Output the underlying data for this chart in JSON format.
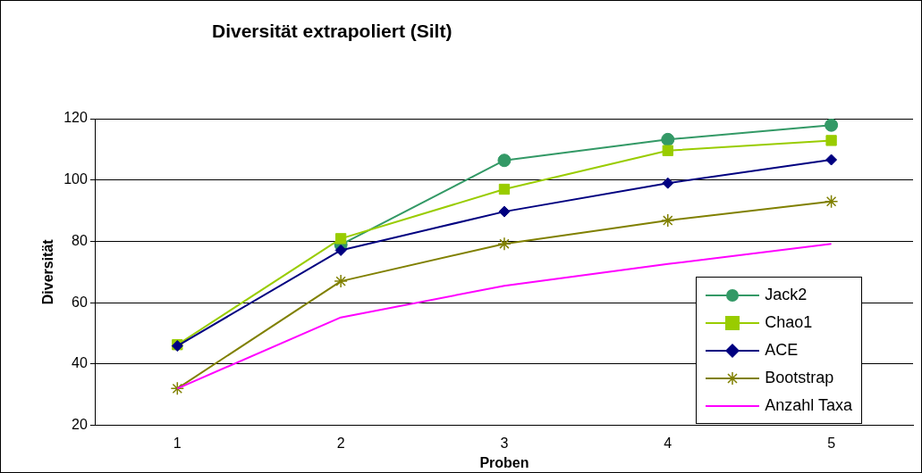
{
  "chart_data": {
    "type": "line",
    "title": "Diversität extrapoliert (Silt)",
    "xlabel": "Proben",
    "ylabel": "Diversität",
    "categories": [
      "1",
      "2",
      "3",
      "4",
      "5"
    ],
    "series": [
      {
        "name": "Jack2",
        "color": "#339966",
        "marker": "circle",
        "values": [
          null,
          78.9,
          106.4,
          113.2,
          117.9
        ]
      },
      {
        "name": "Chao1",
        "color": "#99cc00",
        "marker": "square",
        "values": [
          46.3,
          80.9,
          97.0,
          109.6,
          112.9
        ]
      },
      {
        "name": "ACE",
        "color": "#000080",
        "marker": "diamond",
        "values": [
          45.9,
          77.1,
          89.7,
          99.0,
          106.6
        ]
      },
      {
        "name": "Bootstrap",
        "color": "#808000",
        "marker": "cross",
        "values": [
          32.0,
          67.0,
          79.2,
          86.8,
          93.0
        ]
      },
      {
        "name": "Anzahl Taxa",
        "color": "#ff00ff",
        "marker": "none",
        "values": [
          32.0,
          55.2,
          65.5,
          72.6,
          79.2
        ]
      }
    ],
    "ylim": [
      20,
      120
    ],
    "yticks": [
      20,
      40,
      60,
      80,
      100,
      120
    ],
    "grid": "y",
    "legend": "bottom right"
  }
}
